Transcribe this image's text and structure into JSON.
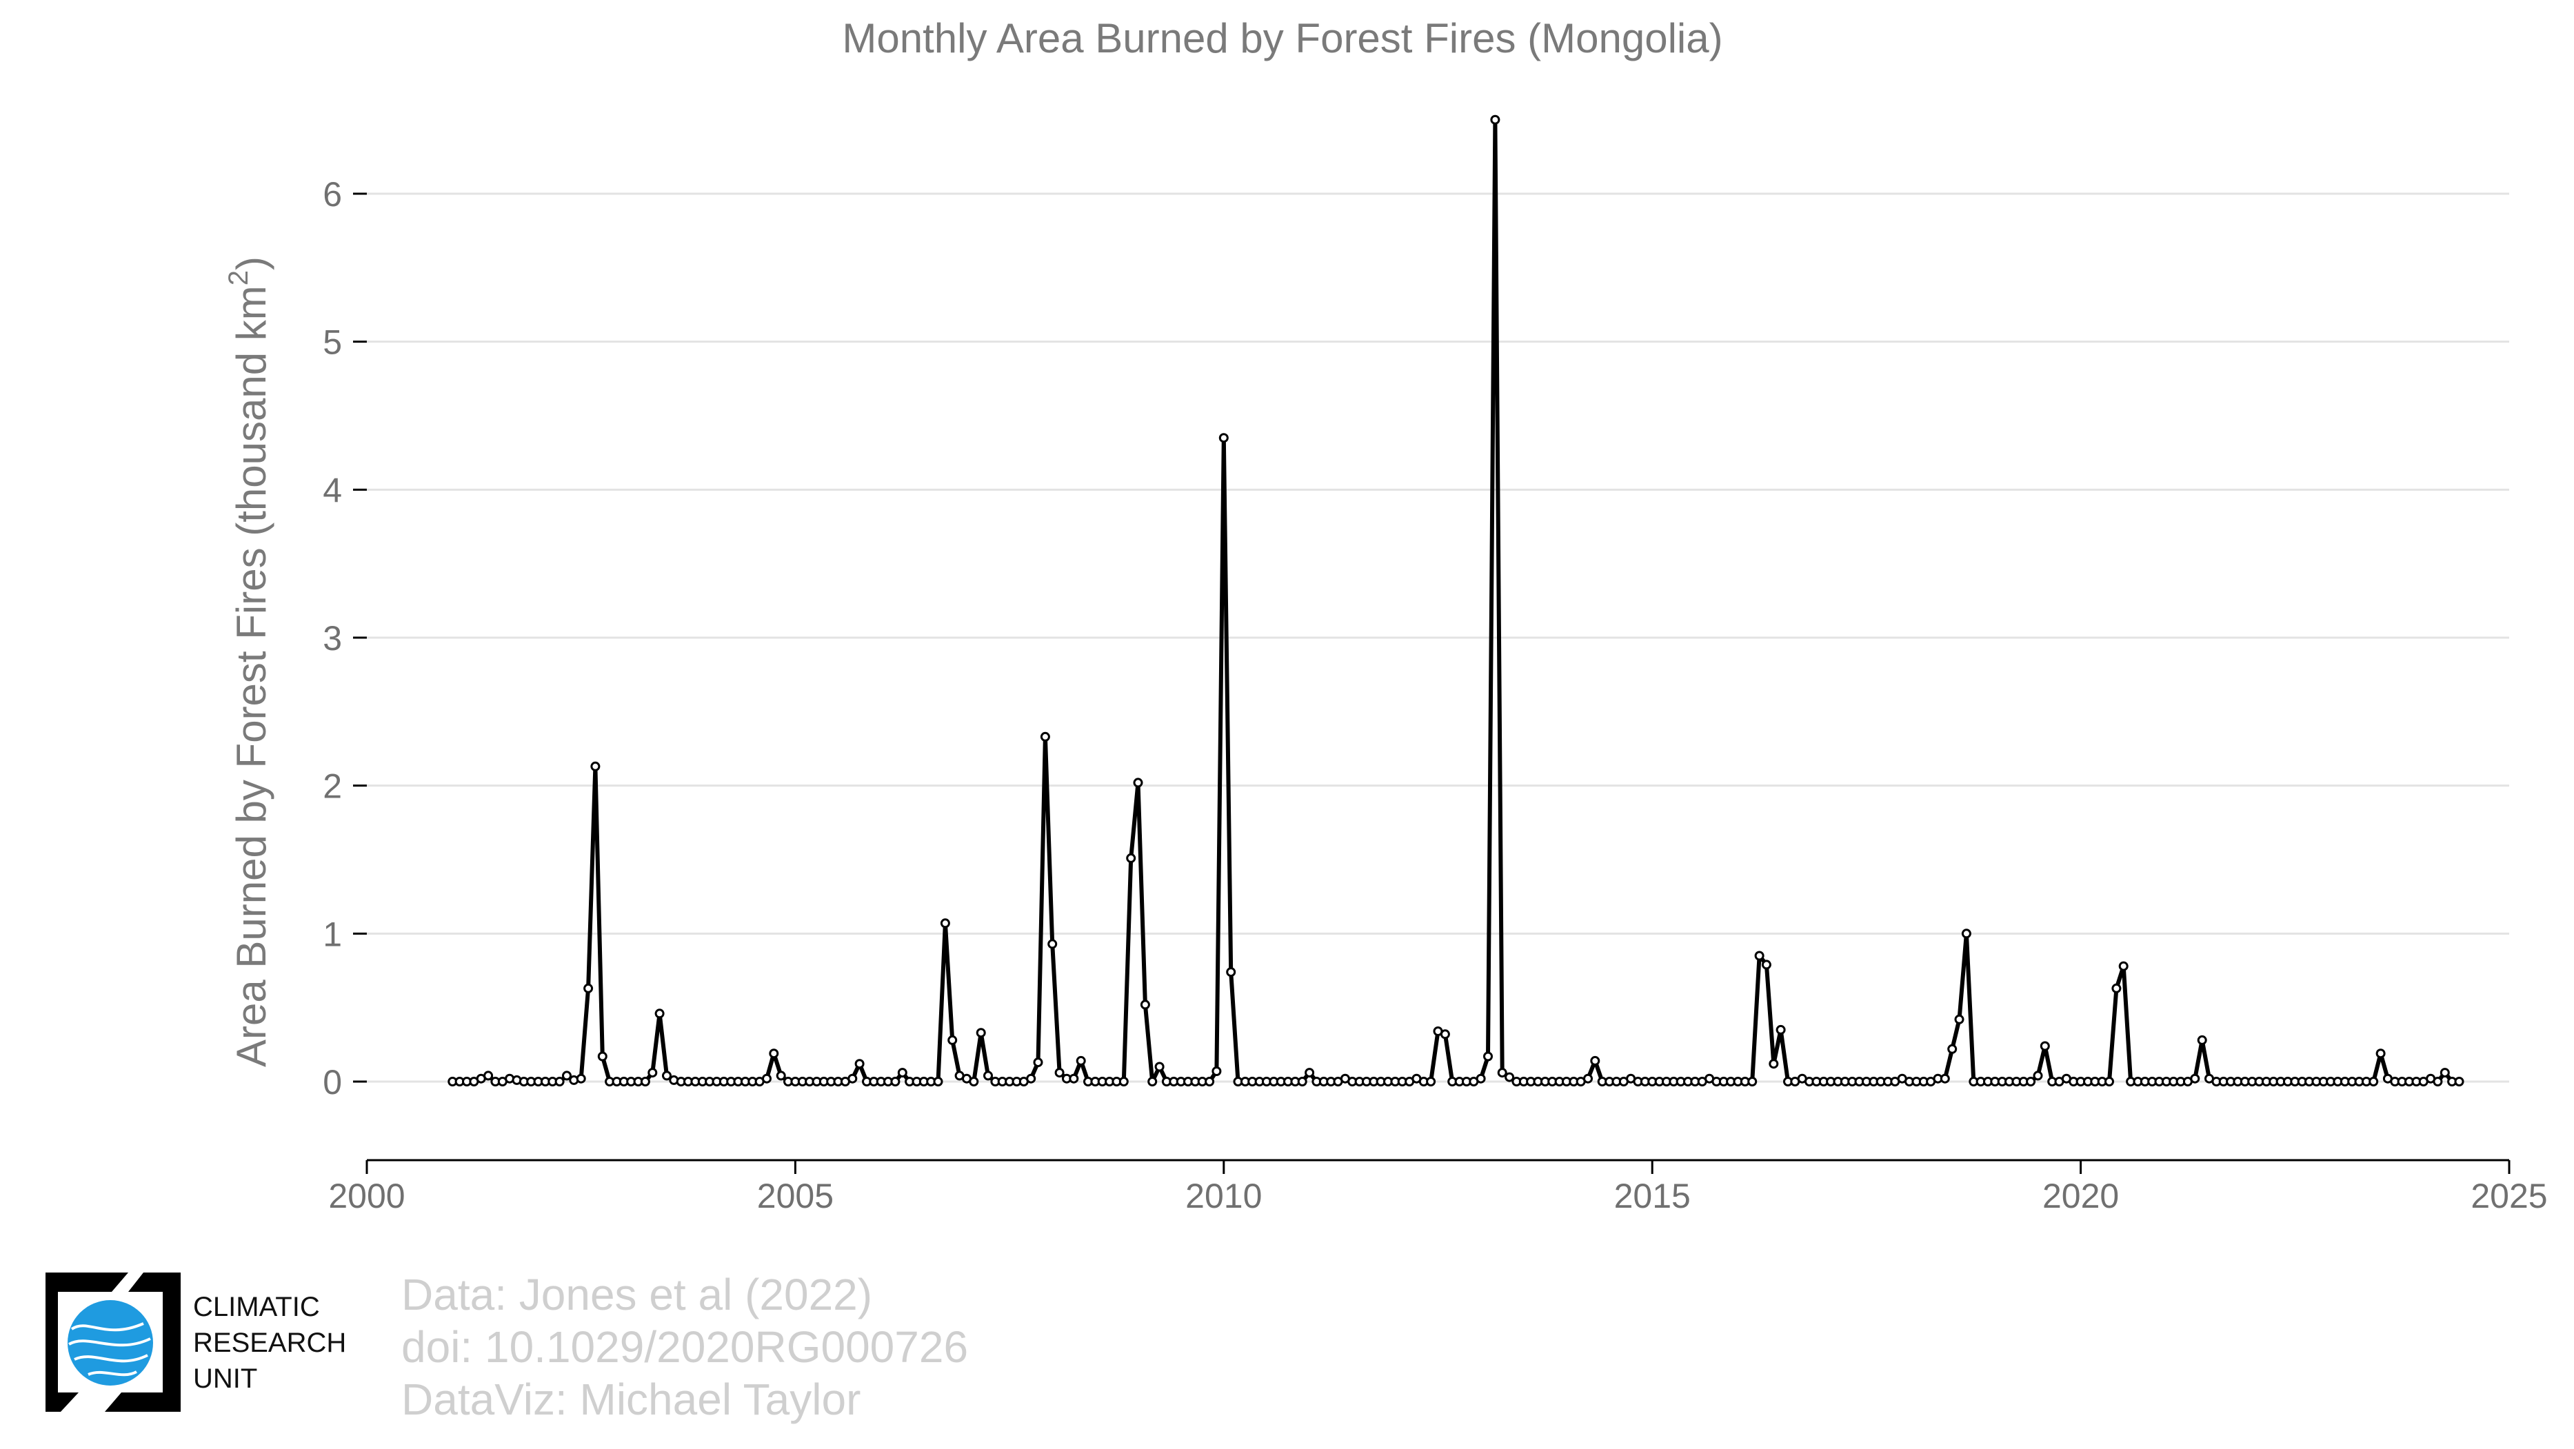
{
  "chart_data": {
    "type": "line",
    "title": "Monthly Area Burned by Forest Fires (Mongolia)",
    "ylabel": "Area Burned by Forest Fires (thousand km",
    "ylabel_sup": "2",
    "ylabel_end": ")",
    "xlabel": "",
    "xlim": [
      2000,
      2025
    ],
    "ylim": [
      -0.5,
      6.5
    ],
    "x_ticks": [
      2000,
      2005,
      2010,
      2015,
      2020,
      2025
    ],
    "x_tick_labels": [
      "2000",
      "2005",
      "2010",
      "2015",
      "2020",
      "2025"
    ],
    "y_ticks": [
      0,
      1,
      2,
      3,
      4,
      5,
      6
    ],
    "y_tick_labels": [
      "0",
      "1",
      "2",
      "3",
      "4",
      "5",
      "6"
    ],
    "grid": "horizontal",
    "start": [
      2001,
      1
    ],
    "series": [
      {
        "color": "#000000",
        "values": [
          0,
          0,
          0,
          0,
          0.02,
          0.04,
          0,
          0,
          0.02,
          0.01,
          0,
          0,
          0,
          0,
          0,
          0,
          0.04,
          0.01,
          0.02,
          0.63,
          2.13,
          0.17,
          0,
          0,
          0,
          0,
          0,
          0,
          0.06,
          0.46,
          0.04,
          0.01,
          0,
          0,
          0,
          0,
          0,
          0,
          0,
          0,
          0,
          0,
          0,
          0,
          0.02,
          0.19,
          0.04,
          0,
          0,
          0,
          0,
          0,
          0,
          0,
          0,
          0,
          0.02,
          0.12,
          0,
          0,
          0,
          0,
          0,
          0.06,
          0,
          0,
          0,
          0,
          0,
          1.07,
          0.28,
          0.04,
          0.02,
          0,
          0.33,
          0.04,
          0,
          0,
          0,
          0,
          0,
          0.02,
          0.13,
          2.33,
          0.93,
          0.06,
          0.02,
          0.02,
          0.14,
          0,
          0,
          0,
          0,
          0,
          0,
          1.51,
          2.02,
          0.52,
          0,
          0.1,
          0,
          0,
          0,
          0,
          0,
          0,
          0,
          0.07,
          4.35,
          0.74,
          0,
          0,
          0,
          0,
          0,
          0,
          0,
          0,
          0,
          0,
          0.06,
          0,
          0,
          0,
          0,
          0.02,
          0,
          0,
          0,
          0,
          0,
          0,
          0,
          0,
          0,
          0.02,
          0,
          0,
          0.34,
          0.32,
          0,
          0,
          0,
          0,
          0.02,
          0.17,
          6.5,
          0.06,
          0.03,
          0,
          0,
          0,
          0,
          0,
          0,
          0,
          0,
          0,
          0,
          0.02,
          0.14,
          0,
          0,
          0,
          0,
          0.02,
          0,
          0,
          0,
          0,
          0,
          0,
          0,
          0,
          0,
          0,
          0.02,
          0,
          0,
          0,
          0,
          0,
          0,
          0.85,
          0.79,
          0.12,
          0.35,
          0,
          0,
          0.02,
          0,
          0,
          0,
          0,
          0,
          0,
          0,
          0,
          0,
          0,
          0,
          0,
          0,
          0.02,
          0,
          0,
          0,
          0,
          0.02,
          0.02,
          0.22,
          0.42,
          1,
          0,
          0,
          0,
          0,
          0,
          0,
          0,
          0,
          0,
          0.04,
          0.24,
          0,
          0,
          0.02,
          0,
          0,
          0,
          0,
          0,
          0,
          0.63,
          0.78,
          0,
          0,
          0,
          0,
          0,
          0,
          0,
          0,
          0,
          0.02,
          0.28,
          0.02,
          0,
          0,
          0,
          0,
          0,
          0,
          0,
          0,
          0,
          0,
          0,
          0,
          0,
          0,
          0,
          0,
          0,
          0,
          0,
          0,
          0,
          0,
          0,
          0.19,
          0.02,
          0,
          0,
          0,
          0,
          0,
          0.02,
          0,
          0.06,
          0,
          0
        ]
      }
    ]
  },
  "credits": {
    "line1": "Data: Jones et al (2022)",
    "line2": "doi: 10.1029/2020RG000726",
    "line3": "DataViz: Michael Taylor"
  },
  "logo": {
    "line1": "CLIMATIC",
    "line2": "RESEARCH",
    "line3": "UNIT",
    "globe_color": "#1f9be0"
  }
}
